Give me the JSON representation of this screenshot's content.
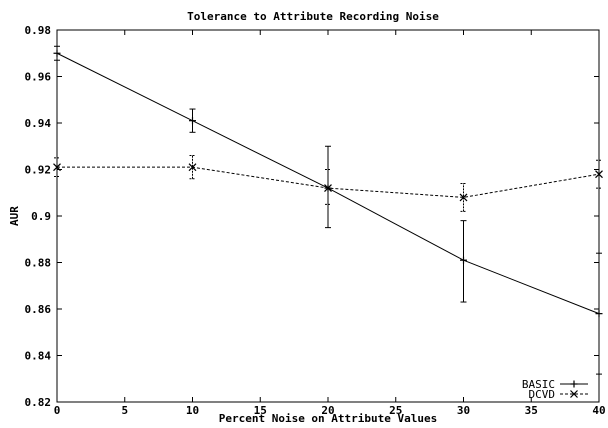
{
  "chart_data": {
    "type": "line",
    "title": "Tolerance to Attribute Recording Noise",
    "xlabel": "Percent Noise on Attribute Values",
    "ylabel": "AUR",
    "xlim": [
      0,
      40
    ],
    "ylim": [
      0.82,
      0.98
    ],
    "x_ticks": [
      0,
      5,
      10,
      15,
      20,
      25,
      30,
      35,
      40
    ],
    "x_tick_labels": [
      "0",
      "5",
      "10",
      "15",
      "20",
      "25",
      "30",
      "35",
      "40"
    ],
    "y_ticks": [
      0.82,
      0.84,
      0.86,
      0.88,
      0.9,
      0.92,
      0.94,
      0.96,
      0.98
    ],
    "y_tick_labels": [
      "0.82",
      "0.84",
      "0.86",
      "0.88",
      "0.9",
      "0.92",
      "0.94",
      "0.96",
      "0.98"
    ],
    "grid": false,
    "legend_position": "bottom-right",
    "series": [
      {
        "name": "BASIC",
        "line_style": "solid",
        "marker": "plus",
        "x": [
          0,
          10,
          20,
          30,
          40
        ],
        "y": [
          0.97,
          0.941,
          0.912,
          0.881,
          0.858
        ],
        "err_low": [
          0.967,
          0.936,
          0.895,
          0.863,
          0.832
        ],
        "err_high": [
          0.973,
          0.946,
          0.93,
          0.898,
          0.884
        ]
      },
      {
        "name": "DCVD",
        "line_style": "dashed",
        "marker": "x",
        "x": [
          0,
          10,
          20,
          30,
          40
        ],
        "y": [
          0.921,
          0.921,
          0.912,
          0.908,
          0.918
        ],
        "err_low": [
          0.917,
          0.916,
          0.905,
          0.902,
          0.912
        ],
        "err_high": [
          0.925,
          0.926,
          0.92,
          0.914,
          0.924
        ]
      }
    ]
  }
}
